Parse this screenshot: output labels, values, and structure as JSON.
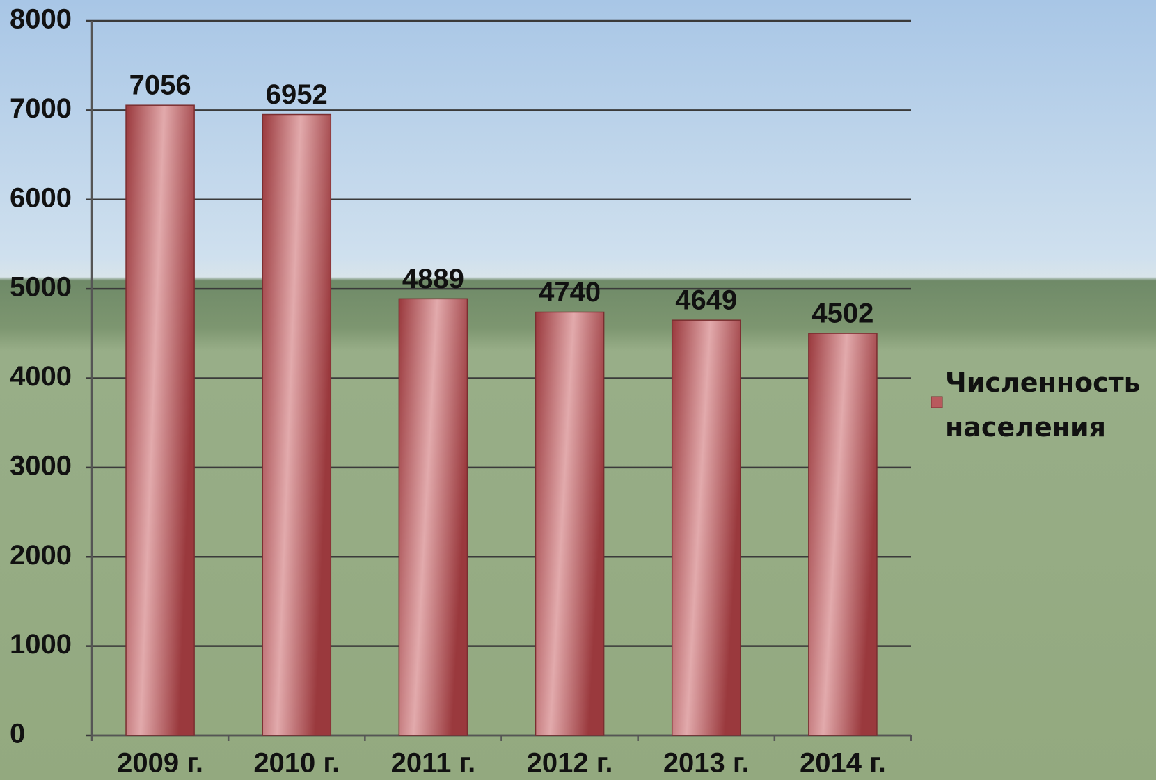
{
  "chart_data": {
    "type": "bar",
    "categories": [
      "2009 г.",
      "2010 г.",
      "2011 г.",
      "2012 г.",
      "2013 г.",
      "2014 г."
    ],
    "series": [
      {
        "name": "Численность населения",
        "color": "#b85a5d",
        "values": [
          7056,
          6952,
          4889,
          4740,
          4649,
          4502
        ]
      }
    ],
    "ylim": [
      0,
      8000
    ],
    "yticks": [
      0,
      1000,
      2000,
      3000,
      4000,
      5000,
      6000,
      7000,
      8000
    ],
    "grid": true,
    "legend": "right"
  }
}
